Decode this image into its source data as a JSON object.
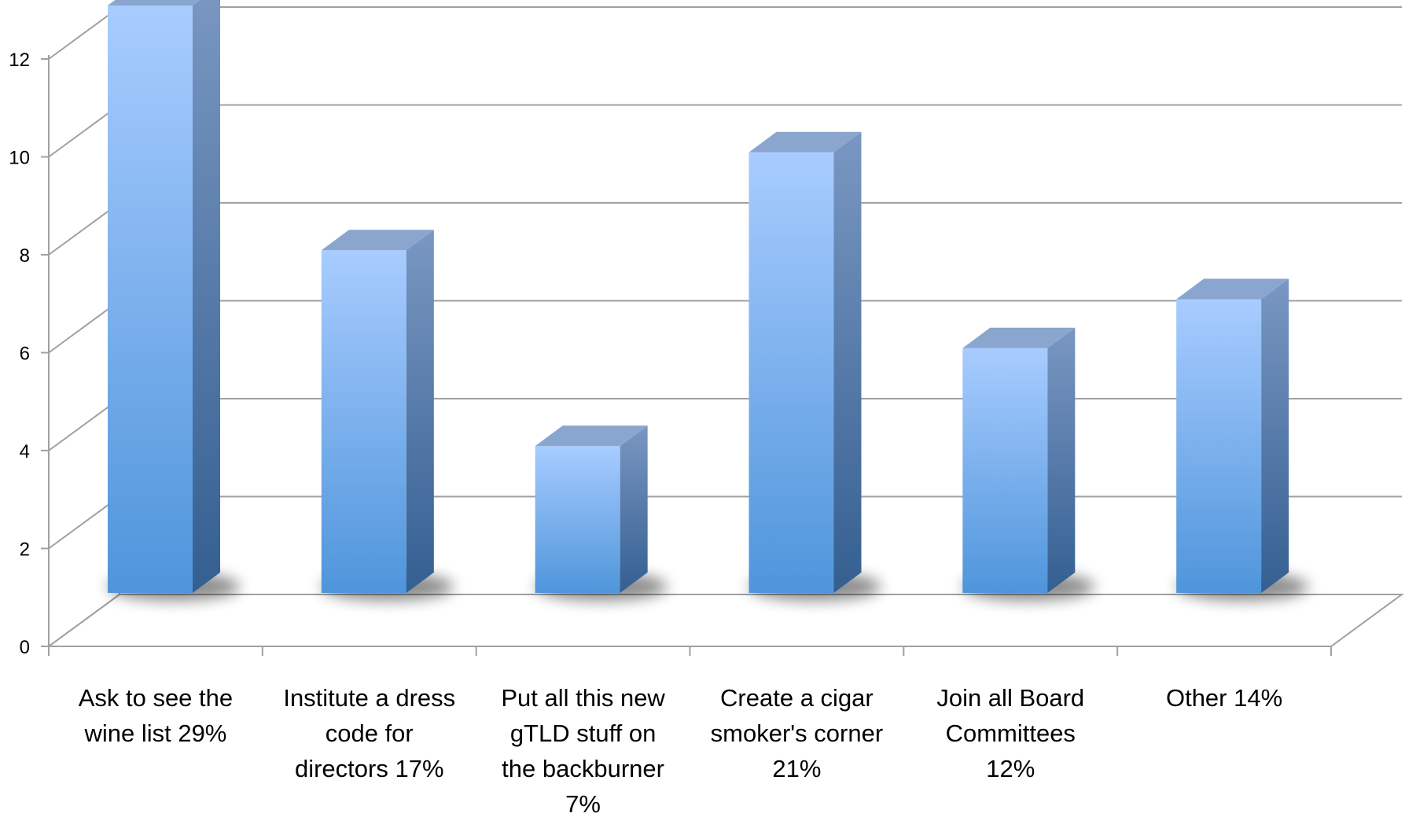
{
  "chart_data": {
    "type": "bar",
    "title": "",
    "xlabel": "",
    "ylabel": "",
    "ylim": [
      0,
      12
    ],
    "yticks": [
      0,
      2,
      4,
      6,
      8,
      10,
      12
    ],
    "style": "3d-column",
    "grid": true,
    "legend": "none",
    "categories": [
      "Ask to see the wine list 29%",
      "Institute a dress code for directors 17%",
      "Put all this new gTLD stuff on the backburner 7%",
      "Create a cigar smoker's corner 21%",
      "Join all Board Committees 12%",
      "Other 14%"
    ],
    "category_label_lines": [
      [
        "Ask to see the",
        "wine list 29%"
      ],
      [
        "Institute a dress",
        "code for",
        "directors 17%"
      ],
      [
        "Put all this new",
        "gTLD stuff on",
        "the backburner",
        "7%"
      ],
      [
        "Create a cigar",
        "smoker's corner",
        "21%"
      ],
      [
        "Join all Board",
        "Committees",
        "12%"
      ],
      [
        "Other 14%"
      ]
    ],
    "values": [
      12,
      7,
      3,
      9,
      5,
      6
    ],
    "colors": {
      "bar_front_light": "#a8ccff",
      "bar_front_dark": "#4f95db",
      "bar_side_light": "#7a97c2",
      "bar_side_dark": "#345f91",
      "bar_top": "#8aa6cf",
      "grid": "#a0a0a0",
      "axis_text": "#000000"
    }
  }
}
